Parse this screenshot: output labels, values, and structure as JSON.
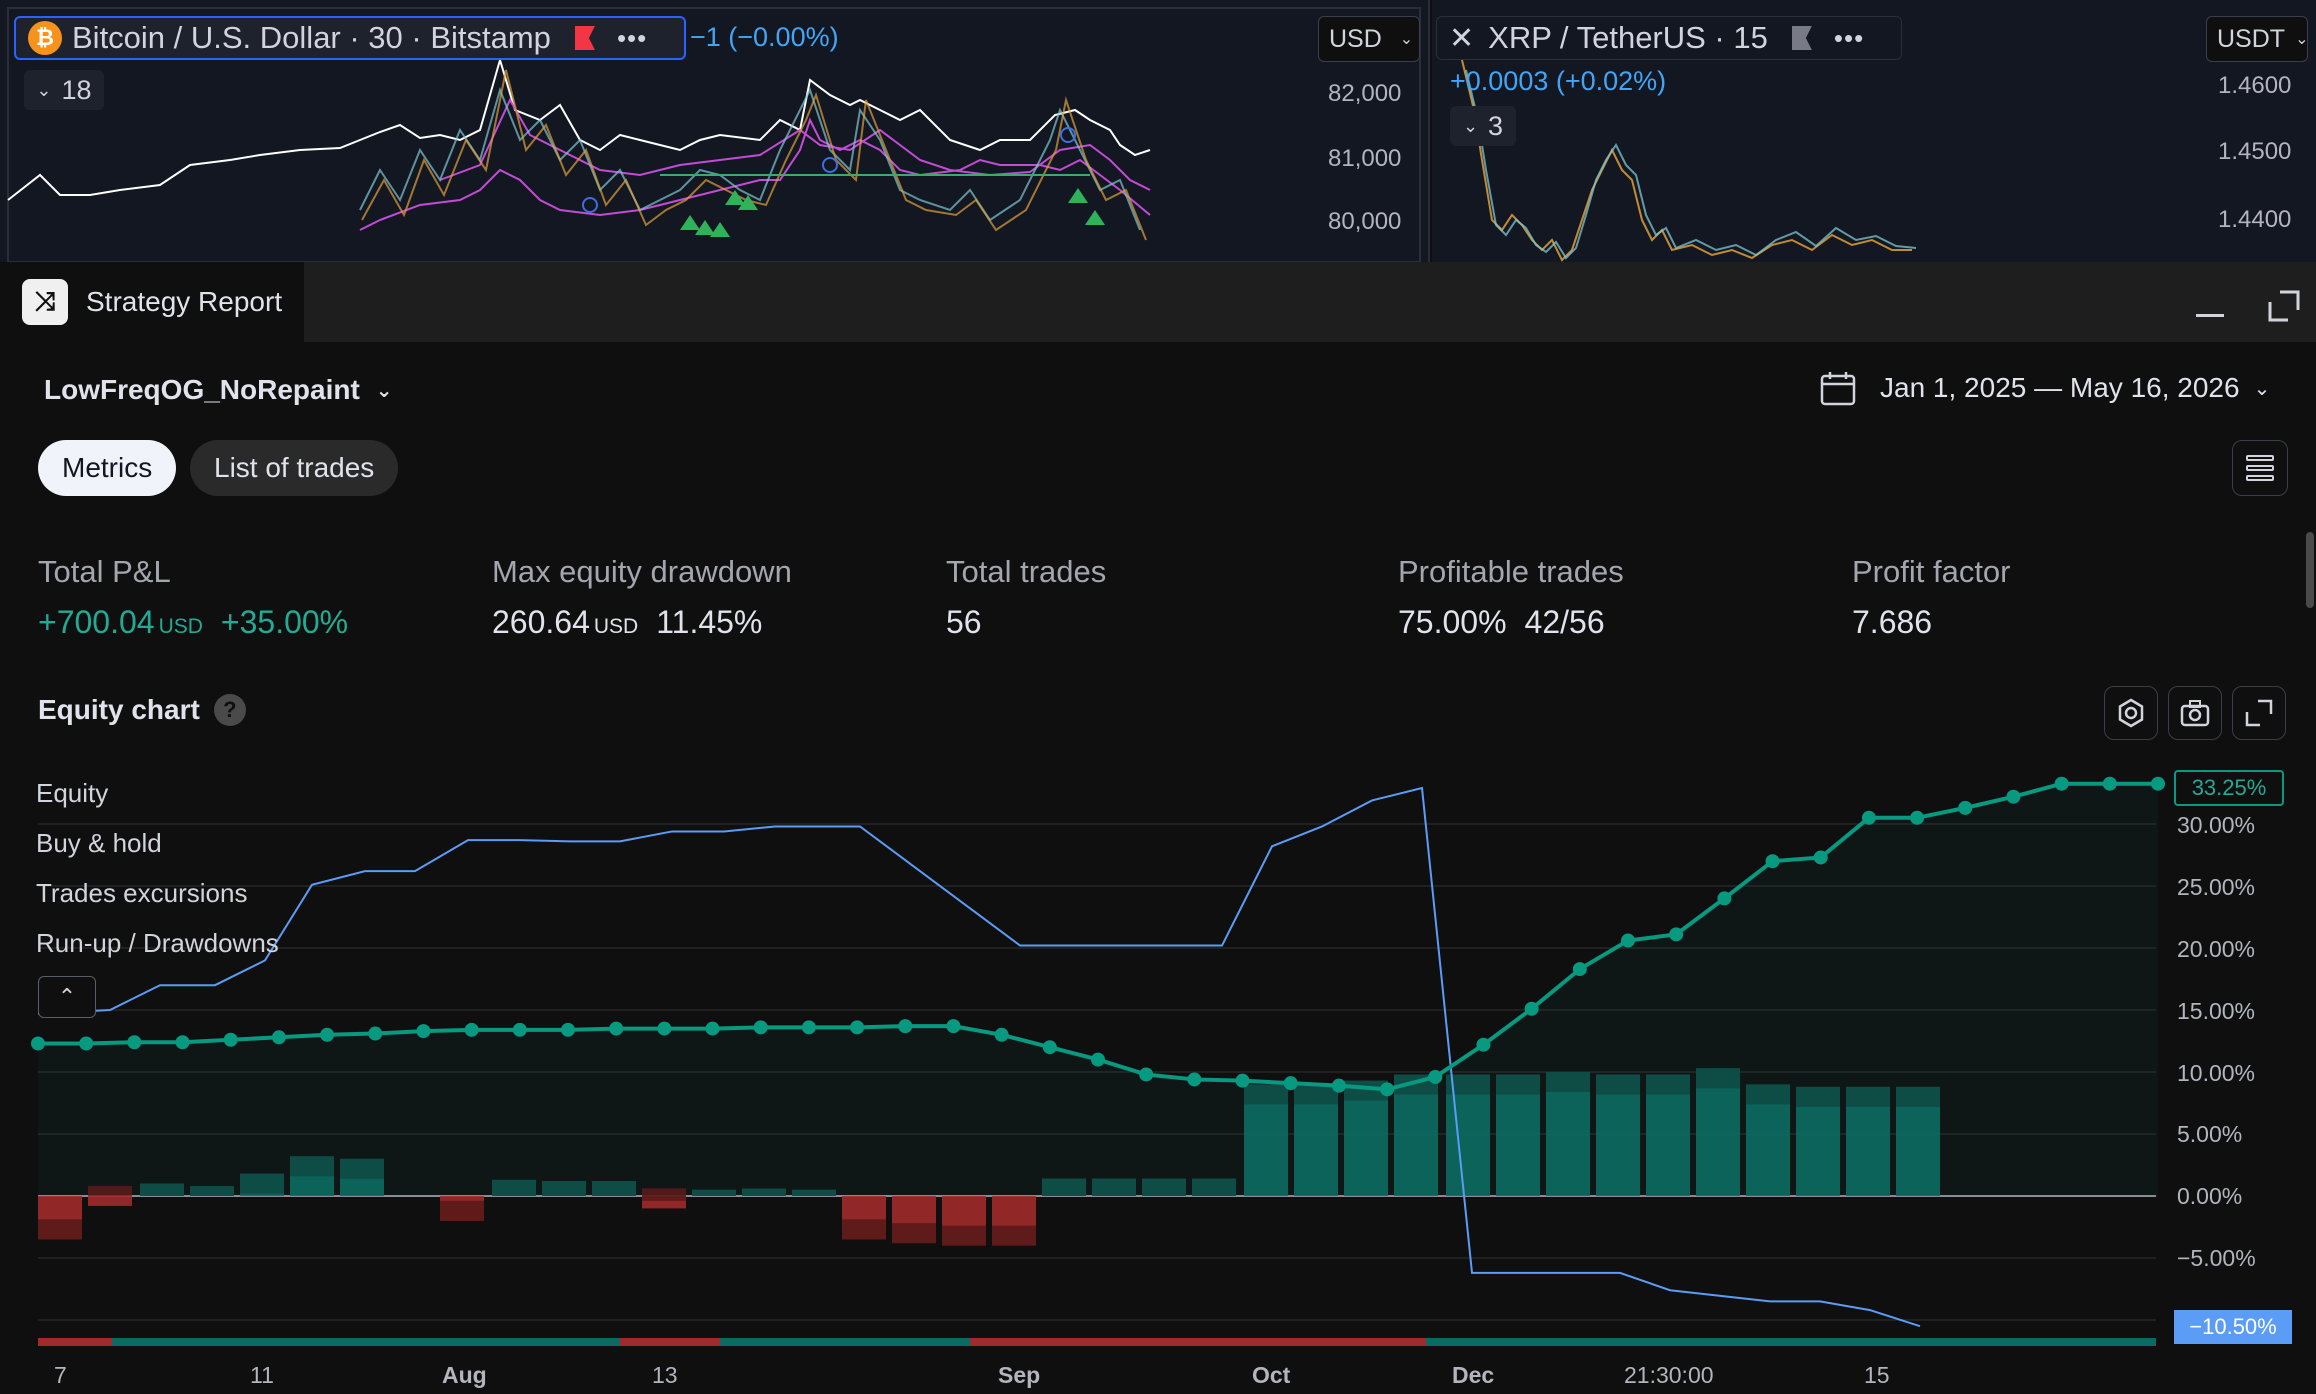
{
  "top_charts": {
    "left": {
      "symbol": "Bitcoin / U.S. Dollar · 30 · Bitstamp",
      "change": "−1 (−0.00%)",
      "currency": "USD",
      "collapse_count": "18",
      "price_axis": [
        "82,000",
        "81,000",
        "80,000"
      ]
    },
    "right": {
      "symbol": "XRP / TetherUS · 15",
      "change": "+0.0003 (+0.02%)",
      "currency": "USDT",
      "collapse_count": "3",
      "price_axis": [
        "1.4600",
        "1.4500",
        "1.4400"
      ]
    }
  },
  "report": {
    "tab_title": "Strategy Report",
    "strategy_name": "LowFreqOG_NoRepaint",
    "date_range": "Jan 1, 2025 — May 16, 2026",
    "tabs": [
      {
        "label": "Metrics",
        "active": true
      },
      {
        "label": "List of trades",
        "active": false
      }
    ],
    "metrics": {
      "total_pnl": {
        "label": "Total P&L",
        "value": "+700.04",
        "unit": "USD",
        "pct": "+35.00%"
      },
      "max_dd": {
        "label": "Max equity drawdown",
        "value": "260.64",
        "unit": "USD",
        "pct": "11.45%"
      },
      "total_trades": {
        "label": "Total trades",
        "value": "56"
      },
      "profitable": {
        "label": "Profitable trades",
        "value": "75.00%",
        "ratio": "42/56"
      },
      "profit_factor": {
        "label": "Profit factor",
        "value": "7.686"
      }
    },
    "equity_chart": {
      "title": "Equity chart",
      "legend": [
        "Equity",
        "Buy & hold",
        "Trades excursions",
        "Run-up / Drawdowns"
      ],
      "badge_top": "33.25%",
      "badge_bottom": "−10.50%",
      "y_ticks": [
        "30.00%",
        "25.00%",
        "20.00%",
        "15.00%",
        "10.00%",
        "5.00%",
        "0.00%",
        "−5.00%"
      ],
      "x_ticks": [
        "7",
        "11",
        "Aug",
        "13",
        "Sep",
        "Oct",
        "Dec",
        "21:30:00",
        "15"
      ]
    }
  },
  "colors": {
    "equity": "#089981",
    "buy_hold": "#5b9cf6",
    "runup": "#0b6b62",
    "drawdown": "#a12a2a",
    "accent_badge": "#5b9cf6"
  },
  "chart_data": {
    "type": "line",
    "ylim": [
      -10.5,
      33.25
    ],
    "series": [
      {
        "values": [
          12.3,
          12.3,
          12.4,
          12.4,
          12.6,
          12.8,
          13.0,
          13.1,
          13.3,
          13.4,
          13.4,
          13.4,
          13.5,
          13.5,
          13.5,
          13.6,
          13.6,
          13.6,
          13.7,
          13.7,
          13.0,
          12.0,
          11.0,
          9.8,
          9.4,
          9.3,
          9.1,
          8.9,
          8.6,
          9.6,
          12.2,
          15.1,
          18.3,
          20.6,
          21.1,
          24.0,
          27.0,
          27.3,
          30.5,
          30.5,
          31.3,
          32.2,
          33.25,
          33.25,
          33.25
        ]
      },
      {
        "values": [
          14.7,
          15.0,
          17.0,
          17.0,
          19.0,
          25.1,
          26.2,
          26.2,
          28.7,
          28.7,
          28.6,
          28.6,
          29.4,
          29.4,
          29.8,
          29.8,
          29.8,
          20.2,
          20.2,
          20.2,
          20.2,
          28.2,
          29.8,
          31.9,
          32.9,
          -6.2,
          -6.2,
          -6.2,
          -6.2,
          -7.6,
          -8.5,
          -8.5,
          -9.2,
          -10.5
        ]
      },
      {
        "name": "Run-up / Drawdowns",
        "values": [
          -3.5,
          -0.8,
          1.0,
          0.8,
          1.8,
          3.2,
          3.0,
          -2.0,
          1.3,
          1.2,
          1.2,
          -1.0,
          0.5,
          0.6,
          0.5,
          -3.5,
          -3.8,
          -4.0,
          -4.0,
          1.4,
          1.4,
          1.4,
          1.4,
          9.0,
          9.0,
          9.3,
          9.8,
          9.8,
          9.8,
          10.0,
          9.8,
          9.8,
          10.3,
          9.0,
          8.8,
          8.8,
          8.8
        ]
      }
    ],
    "x_ticks": [
      "7",
      "11",
      "Aug",
      "13",
      "Sep",
      "Oct",
      "Dec",
      "21:30:00",
      "15"
    ],
    "y_ticks": [
      "30.00%",
      "25.00%",
      "20.00%",
      "15.00%",
      "10.00%",
      "5.00%",
      "0.00%",
      "−5.00%"
    ]
  }
}
